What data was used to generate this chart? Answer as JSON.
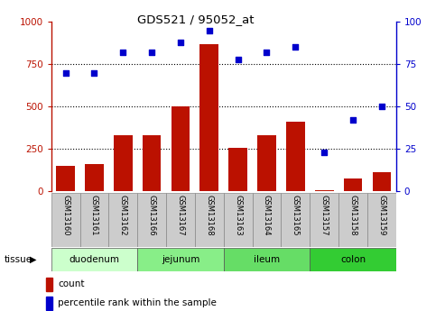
{
  "title": "GDS521 / 95052_at",
  "samples": [
    "GSM13160",
    "GSM13161",
    "GSM13162",
    "GSM13166",
    "GSM13167",
    "GSM13168",
    "GSM13163",
    "GSM13164",
    "GSM13165",
    "GSM13157",
    "GSM13158",
    "GSM13159"
  ],
  "counts": [
    150,
    160,
    330,
    330,
    500,
    870,
    255,
    330,
    410,
    8,
    75,
    110
  ],
  "percentiles": [
    70,
    70,
    82,
    82,
    88,
    95,
    78,
    82,
    85,
    23,
    42,
    50
  ],
  "tissues": [
    {
      "label": "duodenum",
      "start": 0,
      "end": 3,
      "color": "#ccffcc"
    },
    {
      "label": "jejunum",
      "start": 3,
      "end": 6,
      "color": "#88ee88"
    },
    {
      "label": "ileum",
      "start": 6,
      "end": 9,
      "color": "#66dd66"
    },
    {
      "label": "colon",
      "start": 9,
      "end": 12,
      "color": "#33cc33"
    }
  ],
  "bar_color": "#bb1100",
  "dot_color": "#0000cc",
  "left_ylim": [
    0,
    1000
  ],
  "right_ylim": [
    0,
    100
  ],
  "left_yticks": [
    0,
    250,
    500,
    750,
    1000
  ],
  "right_yticks": [
    0,
    25,
    50,
    75,
    100
  ],
  "grid_lines": [
    250,
    500,
    750
  ],
  "sample_box_color": "#cccccc",
  "legend_count_color": "#bb1100",
  "legend_dot_color": "#0000cc",
  "bg_color": "#ffffff"
}
